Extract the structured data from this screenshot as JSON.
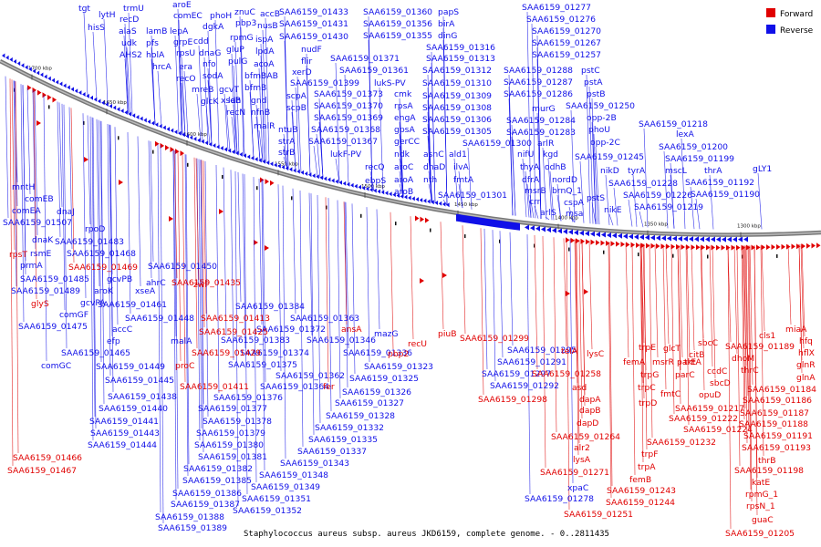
{
  "caption": "Staphylococcus aureus subsp. aureus JKD6159, complete genome. - 0..2811435",
  "legend": {
    "forward": "Forward",
    "reverse": "Reverse",
    "forward_color": "#e00000",
    "reverse_color": "#1010e8"
  },
  "ticks": [
    "1700 kbp",
    "1650 kbp",
    "1600 kbp",
    "1550 kbp",
    "1500 kbp",
    "1450 kbp",
    "1400 kbp",
    "1350 kbp",
    "1300 kbp"
  ],
  "reverse_genes": [
    "tgt",
    "trmU",
    "aroE",
    "lytH",
    "recD",
    "comEC",
    "phoH",
    "znuC",
    "accB",
    "SAA6159_01433",
    "SAA6159_01360",
    "papS",
    "hisS",
    "alaS",
    "lamB",
    "dgkA",
    "pbp3",
    "nusB",
    "SAA6159_01431",
    "SAA6159_01356",
    "birA",
    "SAA6159_01277",
    "udk",
    "lepA",
    "rpmG",
    "ispA",
    "SAA6159_01430",
    "SAA6159_01355",
    "dinG",
    "SAA6159_01276",
    "AHS2",
    "pfs",
    "cdd",
    "gluP",
    "lpdA",
    "nudF",
    "SAA6159_01316",
    "SAA6159_01270",
    "holA",
    "grpE",
    "rpsU",
    "dnaG",
    "pulG",
    "acoA",
    "flir",
    "SAA6159_01371",
    "SAA6159_01313",
    "SAA6159_01267",
    "hrcA",
    "era",
    "nfo",
    "bfmBAB",
    "xerD",
    "SAA6159_01361",
    "SAA6159_01312",
    "SAA6159_01257",
    "recO",
    "sodA",
    "bfmB",
    "SAA6159_01399",
    "lukS-PV",
    "SAA6159_01310",
    "SAA6159_01288",
    "pstC",
    "gcvT",
    "mreB",
    "ldh",
    "glcK",
    "xseB",
    "recN",
    "gnd",
    "nfnB",
    "malR",
    "scpA",
    "scpB",
    "SAA6159_01373",
    "SAA6159_01370",
    "SAA6159_01369",
    "SAA6159_01368",
    "SAA6159_01367",
    "cmk",
    "rpsA",
    "engA",
    "gpsA",
    "gerCC",
    "SAA6159_01309",
    "SAA6159_01308",
    "SAA6159_01306",
    "SAA6159_01305",
    "SAA6159_01287",
    "SAA6159_01286",
    "pstA",
    "pstB",
    "SAA6159_01250",
    "murG",
    "SAA6159_01284",
    "SAA6159_01283",
    "opp-2B",
    "SAA6159_01218",
    "ntuB",
    "strA",
    "strB",
    "lukF-PV",
    "recQ",
    "ebpS",
    "ndk",
    "aroC",
    "aroA",
    "aroB",
    "asnC",
    "dnaD",
    "nth",
    "ald1",
    "ilvA",
    "fmtA",
    "SAA6159_01300",
    "nifU",
    "arlR",
    "thyA",
    "kgd",
    "phoU",
    "opp-2C",
    "lexA",
    "SAA6159_01200",
    "SAA6159_01245",
    "SAA6159_01199",
    "dfrA",
    "odhB",
    "msrB",
    "nordD",
    "crr",
    "brnQ_1",
    "arlS",
    "cspA",
    "msa",
    "mntH",
    "comEB",
    "comEA",
    "SAA6159_01507",
    "dnaJ",
    "rpoD",
    "dnaK",
    "SAA6159_01483",
    "rsmE",
    "SAA6159_01468",
    "prmA",
    "SAA6159_01485",
    "SAA6159_01489",
    "aroK",
    "gcvPB",
    "gcvPA",
    "comGF",
    "SAA6159_01475",
    "comGC",
    "ahrC",
    "xseA",
    "SAA6159_01461",
    "SAA6159_01448",
    "accC",
    "efp",
    "SAA6159_01465",
    "SAA6159_01449",
    "SAA6159_01445",
    "SAA6159_01438",
    "SAA6159_01440",
    "SAA6159_01441",
    "SAA6159_01443",
    "SAA6159_01444",
    "SAA6159_01450",
    "malA",
    "SAA6159_01384",
    "SAA6159_01383",
    "SAA6159_01374",
    "SAA6159_01375",
    "SAA6159_01376",
    "SAA6159_01377",
    "SAA6159_01378",
    "SAA6159_01379",
    "SAA6159_01380",
    "SAA6159_01381",
    "SAA6159_01382",
    "SAA6159_01385",
    "SAA6159_01386",
    "SAA6159_01387",
    "SAA6159_01388",
    "SAA6159_01389",
    "SAA6159_01372",
    "SAA6159_01362",
    "SAA6159_01364",
    "SAA6159_01363",
    "SAA6159_01346",
    "mazG",
    "SAA6159_01336",
    "SAA6159_01323",
    "SAA6159_01325",
    "SAA6159_01326",
    "SAA6159_01327",
    "SAA6159_01328",
    "SAA6159_01332",
    "SAA6159_01335",
    "SAA6159_01337",
    "SAA6159_01343",
    "SAA6159_01348",
    "SAA6159_01349",
    "SAA6159_01351",
    "SAA6159_01352",
    "SAA6159_01295",
    "SAA6159_01291",
    "SAA6159_01297",
    "SAA6159_01292",
    "SAA6159_01278",
    "xpaC",
    "nikD",
    "nikE",
    "pstS",
    "tyrA",
    "mscL",
    "thrA",
    "gLY1",
    "SAA6159_01228",
    "SAA6159_01226",
    "SAA6159_01219",
    "SAA6159_01192",
    "SAA6159_01190",
    "SAA6159_01301"
  ],
  "forward_genes": [
    "rpsT",
    "glyS",
    "SAA6159_01469",
    "zwf",
    "SAA6159_01435",
    "SAA6159_01413",
    "SAA6159_01425",
    "SAA6159_01429",
    "proC",
    "SAA6159_01411",
    "fer",
    "ansA",
    "pbp2",
    "recU",
    "piuB",
    "SAA6159_01299",
    "SAA6159_01298",
    "telA",
    "lysC",
    "SAA6159_01258",
    "asd",
    "dapA",
    "dapB",
    "dapD",
    "SAA6159_01264",
    "alr2",
    "lysA",
    "SAA6159_01271",
    "trpE",
    "femA",
    "trpG",
    "trpC",
    "trpD",
    "trpF",
    "trpA",
    "femB",
    "SAA6159_01243",
    "SAA6159_01244",
    "SAA6159_01251",
    "msrR",
    "glcT",
    "parE",
    "parC",
    "fmtC",
    "citB",
    "tktA",
    "sbcC",
    "SAA6159_01222",
    "SAA6159_01224",
    "SAA6159_01232",
    "SAA6159_01217",
    "opuD",
    "ccdC",
    "sbcD",
    "dhoM",
    "thrC",
    "SAA6159_01189",
    "cls1",
    "miaA",
    "hfq",
    "hflX",
    "glnR",
    "glnA",
    "SAA6159_01184",
    "SAA6159_01186",
    "SAA6159_01187",
    "SAA6159_01188",
    "SAA6159_01191",
    "SAA6159_01193",
    "SAA6159_01198",
    "thrB",
    "katE",
    "rpmG_1",
    "rpsN_1",
    "guaC",
    "SAA6159_01205",
    "SAA6159_01466",
    "SAA6159_01467"
  ]
}
